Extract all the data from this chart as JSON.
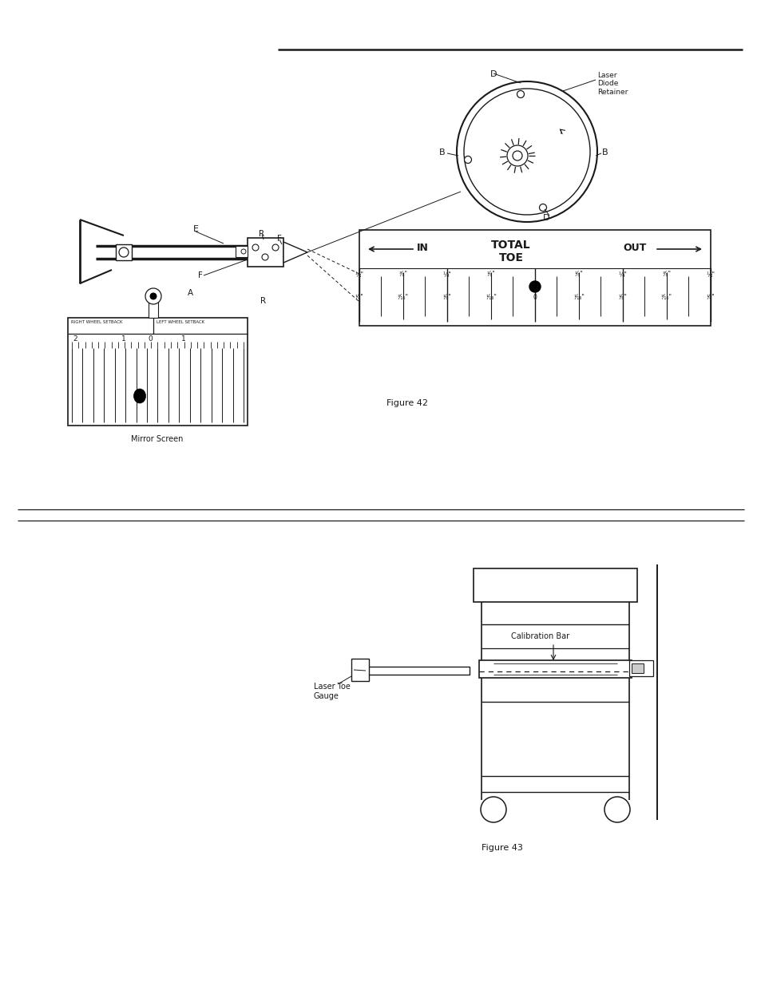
{
  "bg_color": "#ffffff",
  "line_color": "#1a1a1a",
  "fig_width": 9.54,
  "fig_height": 12.35,
  "dpi": 100,
  "figure42_caption": "Figure 42",
  "figure43_caption": "Figure 43",
  "mirror_screen_label": "Mirror Screen",
  "laser_diode_retainer": "Laser\nDiode\nRetainer",
  "calibration_bar": "Calibration Bar",
  "laser_toe_gauge": "Laser Toe\nGauge"
}
